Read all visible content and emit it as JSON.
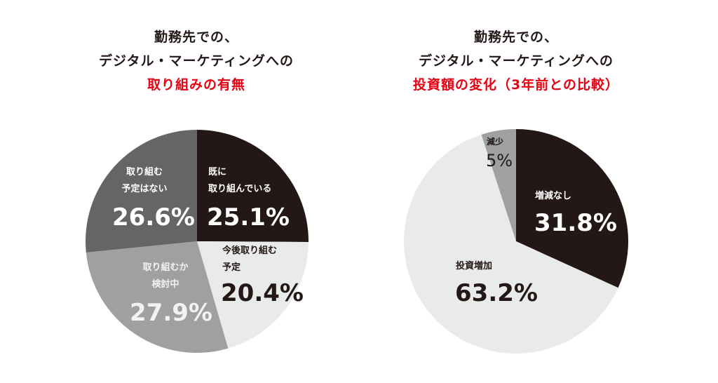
{
  "titles": {
    "left": {
      "line1": "勤務先での、",
      "line2": "デジタル・マーケティングへの",
      "line3": "取り組みの有無"
    },
    "right": {
      "line1": "勤務先での、",
      "line2": "デジタル・マーケティングへの",
      "line3": "投資額の変化（3年前との比較）"
    }
  },
  "colors": {
    "dark": "#231815",
    "darkgrey": "#666464",
    "grey": "#9fa0a0",
    "light": "#e9eaea",
    "accent_red": "#e60012"
  },
  "left_pie": {
    "slices": [
      {
        "label_l1": "既に",
        "label_l2": "取り組んでいる",
        "value": "25.1%"
      },
      {
        "label_l1": "今後取り組む",
        "label_l2": "予定",
        "value": "20.4%"
      },
      {
        "label_l1": "取り組むか",
        "label_l2": "検討中",
        "value": "27.9%"
      },
      {
        "label_l1": "取り組む",
        "label_l2": "予定はない",
        "value": "26.6%"
      }
    ]
  },
  "right_pie": {
    "slices": [
      {
        "label": "増減なし",
        "value": "31.8%"
      },
      {
        "label": "投資増加",
        "value": "63.2%"
      },
      {
        "label": "減少",
        "value": "5%"
      }
    ]
  },
  "chart_data": [
    {
      "type": "pie",
      "title": "勤務先での、デジタル・マーケティングへの取り組みの有無",
      "categories": [
        "既に取り組んでいる",
        "今後取り組む予定",
        "取り組むか検討中",
        "取り組む予定はない"
      ],
      "values": [
        25.1,
        20.4,
        27.9,
        26.6
      ],
      "unit": "%",
      "start_angle": "12 o'clock, clockwise",
      "colors": [
        "#231815",
        "#e9eaea",
        "#9fa0a0",
        "#666464"
      ]
    },
    {
      "type": "pie",
      "title": "勤務先での、デジタル・マーケティングへの投資額の変化（3年前との比較）",
      "categories": [
        "増減なし",
        "投資増加",
        "減少"
      ],
      "values": [
        31.8,
        63.2,
        5
      ],
      "unit": "%",
      "start_angle": "12 o'clock, clockwise",
      "colors": [
        "#231815",
        "#e9eaea",
        "#9fa0a0"
      ]
    }
  ]
}
